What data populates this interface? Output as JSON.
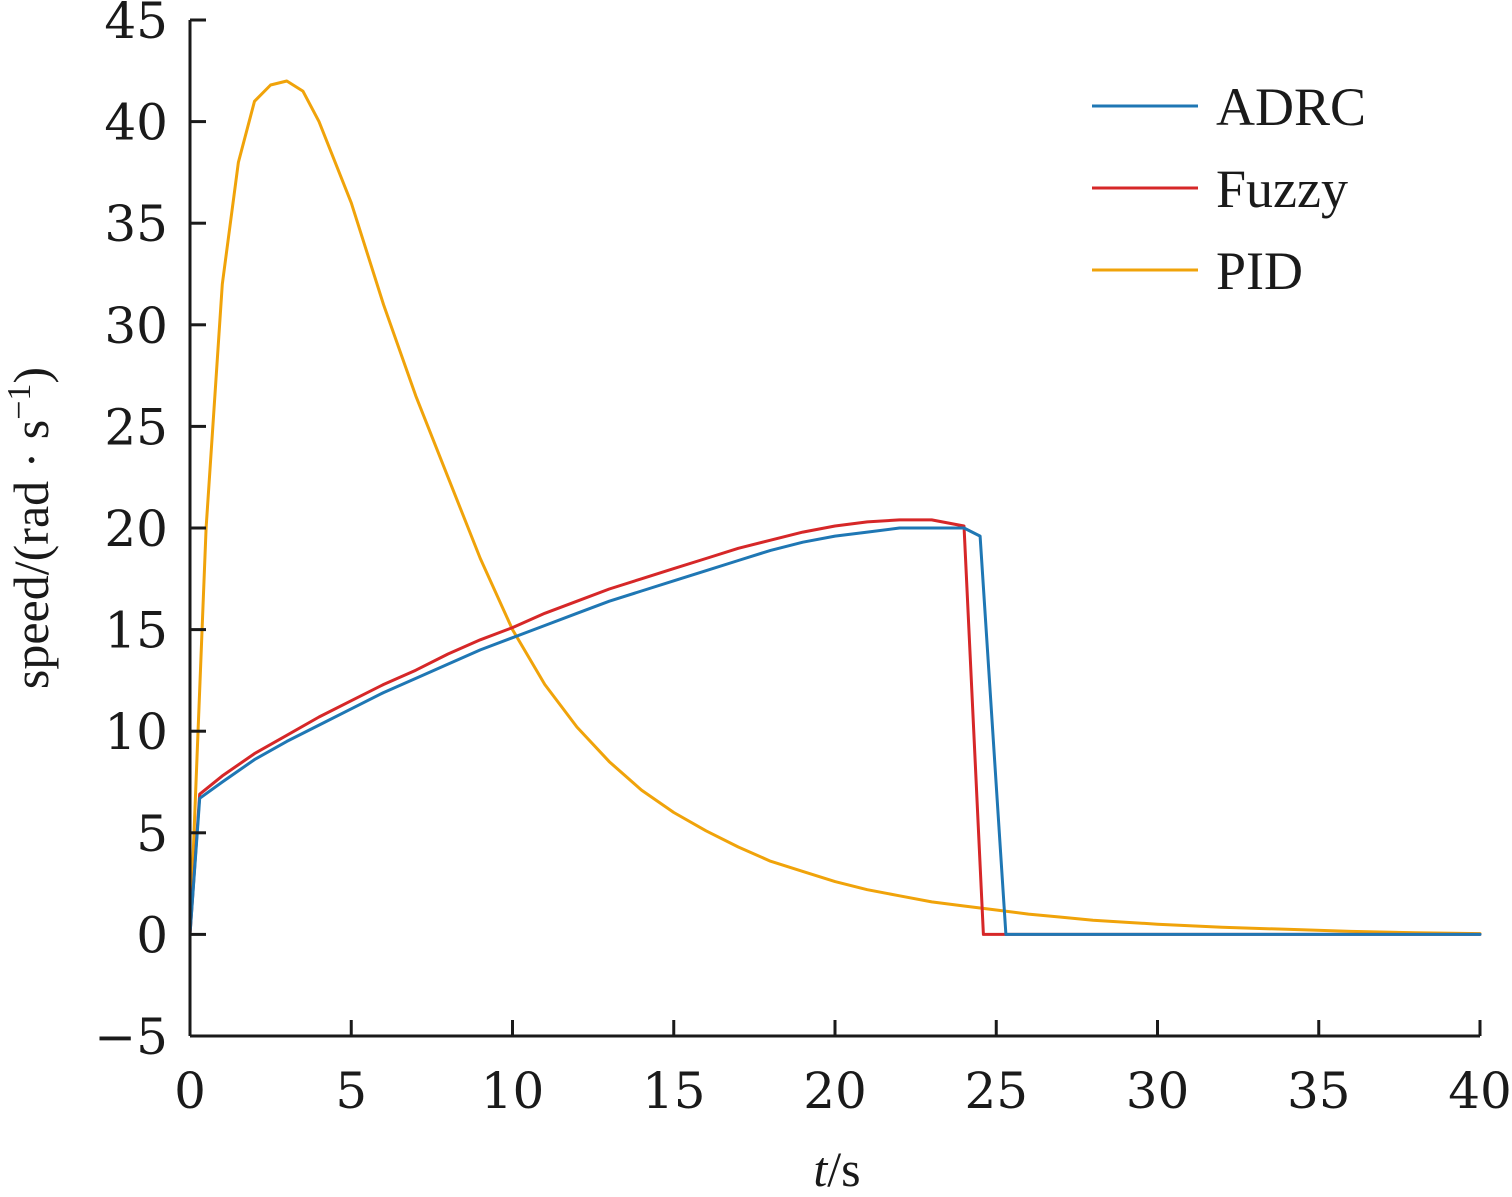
{
  "chart_data": {
    "type": "line",
    "xlabel_italic": "t",
    "xlabel_rest": "/s",
    "ylabel": "speed/(rad · s",
    "ylabel_sup": "−1",
    "ylabel_close": ")",
    "xlim": [
      0,
      40
    ],
    "ylim": [
      -5,
      45
    ],
    "xticks": [
      0,
      5,
      10,
      15,
      20,
      25,
      30,
      35,
      40
    ],
    "yticks": [
      -5,
      0,
      5,
      10,
      15,
      20,
      25,
      30,
      35,
      40,
      45
    ],
    "xtick_labels": [
      "0",
      "5",
      "10",
      "15",
      "20",
      "25",
      "30",
      "35",
      "40"
    ],
    "ytick_labels": [
      "−5",
      "0",
      "5",
      "10",
      "15",
      "20",
      "25",
      "30",
      "35",
      "40",
      "45"
    ],
    "grid": false,
    "legend_position": "top-right",
    "series": [
      {
        "name": "ADRC",
        "color": "#1f77b4",
        "x": [
          0,
          0.3,
          1,
          2,
          3,
          4,
          5,
          6,
          7,
          8,
          9,
          10,
          11,
          12,
          13,
          14,
          15,
          16,
          17,
          18,
          19,
          20,
          21,
          22,
          23,
          24,
          24.5,
          25.3,
          25.5,
          30,
          35,
          40
        ],
        "y": [
          0,
          6.7,
          7.5,
          8.6,
          9.5,
          10.3,
          11.1,
          11.9,
          12.6,
          13.3,
          14.0,
          14.6,
          15.2,
          15.8,
          16.4,
          16.9,
          17.4,
          17.9,
          18.4,
          18.9,
          19.3,
          19.6,
          19.8,
          20.0,
          20.0,
          20.0,
          19.6,
          0,
          0,
          0,
          0,
          0
        ]
      },
      {
        "name": "Fuzzy",
        "color": "#d62728",
        "x": [
          0,
          0.3,
          1,
          2,
          3,
          4,
          5,
          6,
          7,
          8,
          9,
          10,
          11,
          12,
          13,
          14,
          15,
          16,
          17,
          18,
          19,
          20,
          21,
          22,
          23,
          24,
          24.6,
          25,
          30,
          35,
          40
        ],
        "y": [
          0,
          6.9,
          7.8,
          8.9,
          9.8,
          10.7,
          11.5,
          12.3,
          13.0,
          13.8,
          14.5,
          15.1,
          15.8,
          16.4,
          17.0,
          17.5,
          18.0,
          18.5,
          19.0,
          19.4,
          19.8,
          20.1,
          20.3,
          20.4,
          20.4,
          20.1,
          0,
          0,
          0,
          0,
          0
        ]
      },
      {
        "name": "PID",
        "color": "#f0a30a",
        "x": [
          0,
          0.5,
          1,
          1.5,
          2,
          2.5,
          3,
          3.5,
          4,
          5,
          6,
          7,
          8,
          9,
          10,
          11,
          12,
          13,
          14,
          15,
          16,
          17,
          18,
          19,
          20,
          21,
          22,
          23,
          24,
          25,
          26,
          27,
          28,
          29,
          30,
          32,
          34,
          36,
          38,
          40
        ],
        "y": [
          0,
          20,
          32,
          38,
          41,
          41.8,
          42,
          41.5,
          40,
          36,
          31,
          26.5,
          22.5,
          18.5,
          15,
          12.3,
          10.2,
          8.5,
          7.1,
          6.0,
          5.1,
          4.3,
          3.6,
          3.1,
          2.6,
          2.2,
          1.9,
          1.6,
          1.4,
          1.2,
          1.0,
          0.85,
          0.7,
          0.6,
          0.5,
          0.35,
          0.25,
          0.15,
          0.08,
          0.04
        ]
      }
    ]
  }
}
